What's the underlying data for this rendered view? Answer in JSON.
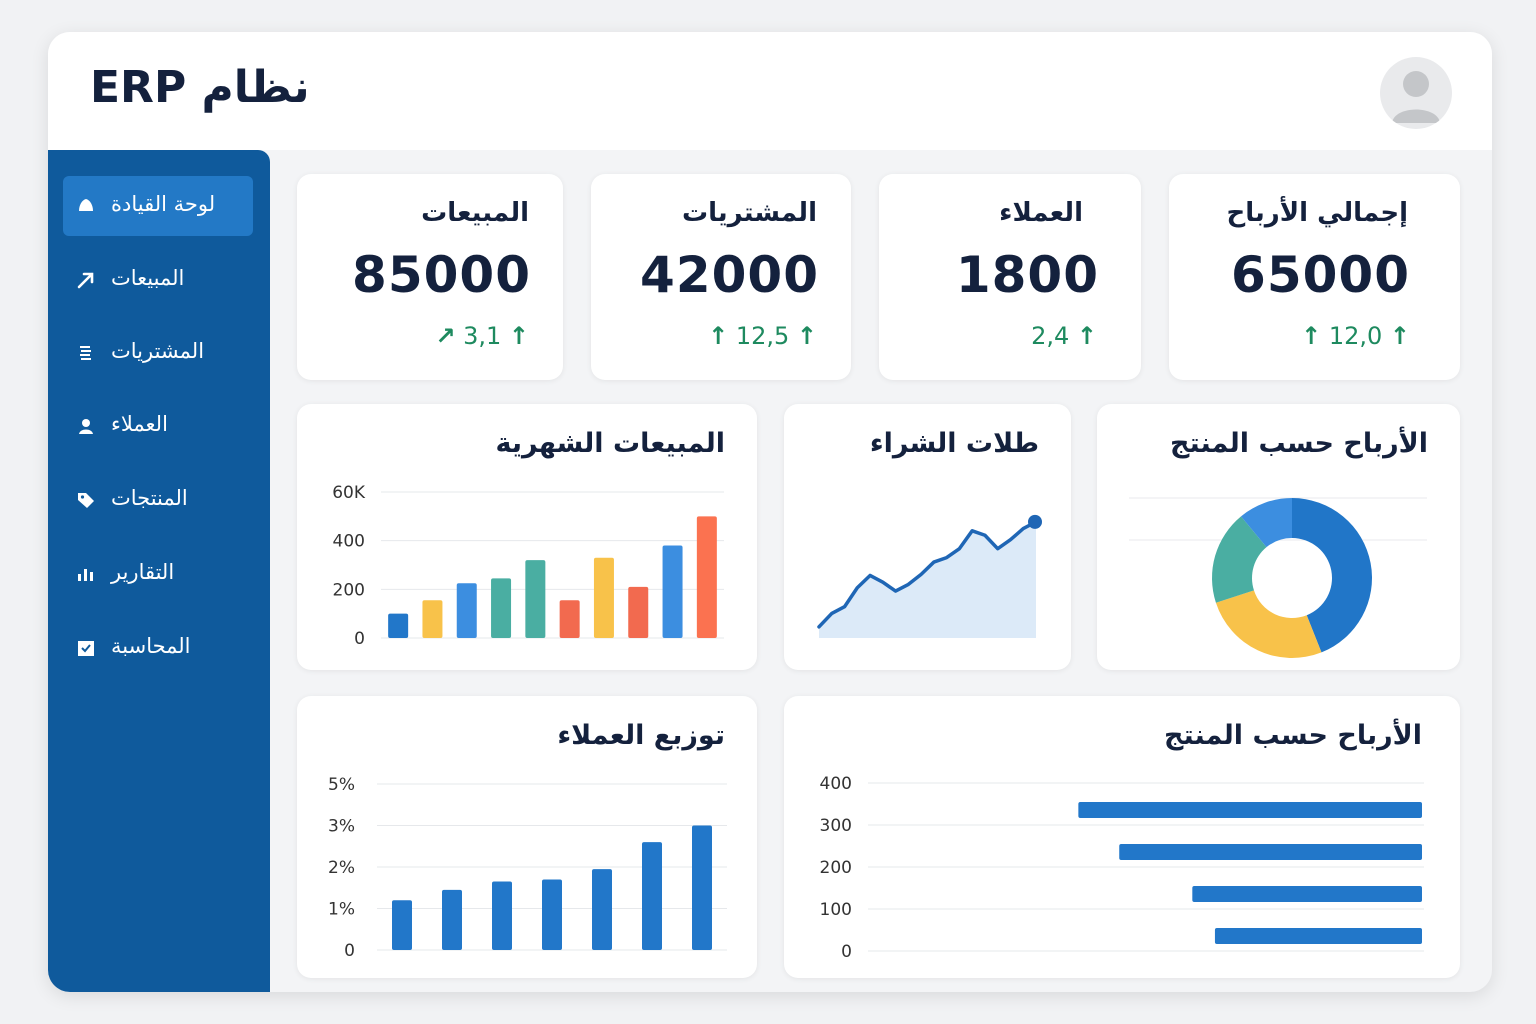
{
  "app": {
    "title": "نظام ERP"
  },
  "sidebar": {
    "items": [
      {
        "label": "لوحة القيادة",
        "icon": "home-icon",
        "active": true
      },
      {
        "label": "المبيعات",
        "icon": "trend-arrow-icon",
        "active": false
      },
      {
        "label": "المشتريات",
        "icon": "list-icon",
        "active": false
      },
      {
        "label": "العملاء",
        "icon": "user-icon",
        "active": false
      },
      {
        "label": "المنتجات",
        "icon": "tag-icon",
        "active": false
      },
      {
        "label": "التقارير",
        "icon": "bar-chart-icon",
        "active": false
      },
      {
        "label": "المحاسبة",
        "icon": "ledger-icon",
        "active": false
      }
    ]
  },
  "kpis": [
    {
      "title": "المبيعات",
      "value": "85000",
      "change": "3,1"
    },
    {
      "title": "المشتريات",
      "value": "42000",
      "change": "12,5"
    },
    {
      "title": "العملاء",
      "value": "1800",
      "change": "2,4"
    },
    {
      "title": "إجمالي الأرباح",
      "value": "65000",
      "change": "12,0"
    }
  ],
  "colors": {
    "sidebar": "#0f5a9c",
    "sidebar_active": "#2379c6",
    "positive": "#1e8a5f",
    "primary_bar": "#2277c9"
  },
  "chart_data": [
    {
      "type": "bar",
      "title": "المبيعات الشهرية",
      "ytick_labels": [
        "0",
        "200",
        "400",
        "60K"
      ],
      "ylim": [
        0,
        600
      ],
      "values": [
        100,
        155,
        225,
        245,
        320,
        155,
        330,
        210,
        380,
        500
      ],
      "colors": [
        "#2277c9",
        "#f8c24a",
        "#3c8ee0",
        "#4aaea2",
        "#4aaea2",
        "#f26a4f",
        "#f8c24a",
        "#f26a4f",
        "#3c8ee0",
        "#fb7250"
      ],
      "grid": true
    },
    {
      "type": "area",
      "title": "طلات الشراء",
      "x": [
        0,
        1,
        2,
        3,
        4,
        5,
        6,
        7,
        8,
        9,
        10,
        11,
        12,
        13,
        14,
        15,
        16,
        17
      ],
      "values": [
        10,
        22,
        28,
        45,
        56,
        50,
        42,
        48,
        57,
        68,
        72,
        80,
        96,
        92,
        80,
        88,
        98,
        104
      ],
      "ylim": [
        0,
        120
      ],
      "grid": false
    },
    {
      "type": "pie",
      "title": "الأرباح حسب المنتج",
      "slices": [
        {
          "value": 44,
          "color": "#2176c8"
        },
        {
          "value": 26,
          "color": "#f8c24a"
        },
        {
          "value": 19,
          "color": "#4aaea2"
        },
        {
          "value": 11,
          "color": "#3c8ee0"
        }
      ],
      "donut": true
    },
    {
      "type": "bar",
      "title": "توزبع العملاء",
      "ytick_labels": [
        "0",
        "1%",
        "2%",
        "3%",
        "5%"
      ],
      "ylim": [
        0,
        4
      ],
      "values": [
        1.2,
        1.45,
        1.65,
        1.7,
        1.95,
        2.6,
        3.0
      ],
      "grid": true
    },
    {
      "type": "bar",
      "orientation": "horizontal",
      "title": "الأرباح حسب المنتج",
      "ytick_labels": [
        "0",
        "100",
        "200",
        "300",
        "400"
      ],
      "xlim": [
        0,
        400
      ],
      "values": [
        395,
        348,
        264,
        238
      ],
      "grid": true
    }
  ]
}
